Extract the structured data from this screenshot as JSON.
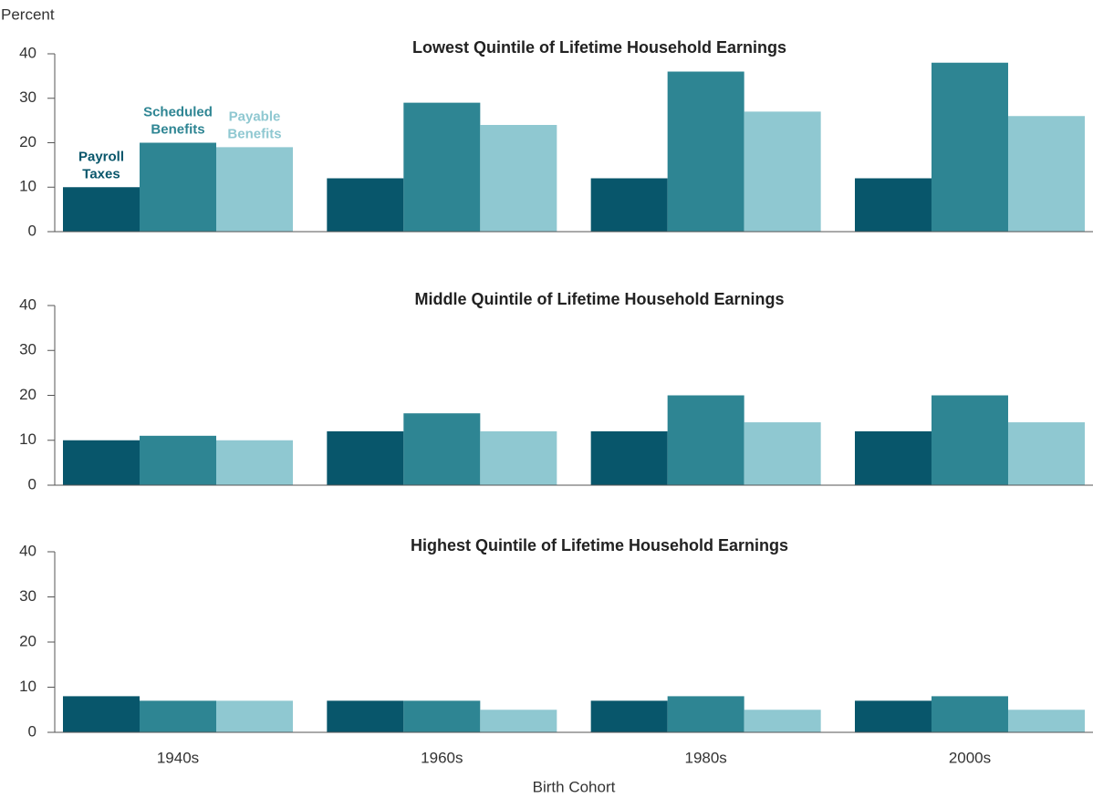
{
  "chart_data": [
    {
      "type": "bar",
      "title": "Lowest Quintile of Lifetime Household Earnings",
      "y_label": "Percent",
      "ylim": [
        0,
        40
      ],
      "yticks": [
        0,
        10,
        20,
        30,
        40
      ],
      "series": [
        {
          "name": "Payroll Taxes",
          "color": "#08566b",
          "values": [
            10,
            12,
            12,
            12
          ]
        },
        {
          "name": "Scheduled Benefits",
          "color": "#2e8593",
          "values": [
            20,
            29,
            36,
            38
          ]
        },
        {
          "name": "Payable Benefits",
          "color": "#8fc8d1",
          "values": [
            19,
            24,
            27,
            26
          ]
        }
      ]
    },
    {
      "type": "bar",
      "title": "Middle Quintile of Lifetime Household Earnings",
      "ylim": [
        0,
        40
      ],
      "yticks": [
        0,
        10,
        20,
        30,
        40
      ],
      "series": [
        {
          "color": "#08566b",
          "values": [
            10,
            12,
            12,
            12
          ]
        },
        {
          "color": "#2e8593",
          "values": [
            11,
            16,
            20,
            20
          ]
        },
        {
          "color": "#8fc8d1",
          "values": [
            10,
            12,
            14,
            14
          ]
        }
      ]
    },
    {
      "type": "bar",
      "title": "Highest Quintile of Lifetime Household Earnings",
      "x_label": "Birth Cohort",
      "categories": [
        "1940s",
        "1960s",
        "1980s",
        "2000s"
      ],
      "ylim": [
        0,
        40
      ],
      "yticks": [
        0,
        10,
        20,
        30,
        40
      ],
      "series": [
        {
          "color": "#08566b",
          "values": [
            8,
            7,
            7,
            7
          ]
        },
        {
          "color": "#2e8593",
          "values": [
            7,
            7,
            8,
            8
          ]
        },
        {
          "color": "#8fc8d1",
          "values": [
            7,
            5,
            5,
            5
          ]
        }
      ]
    }
  ]
}
